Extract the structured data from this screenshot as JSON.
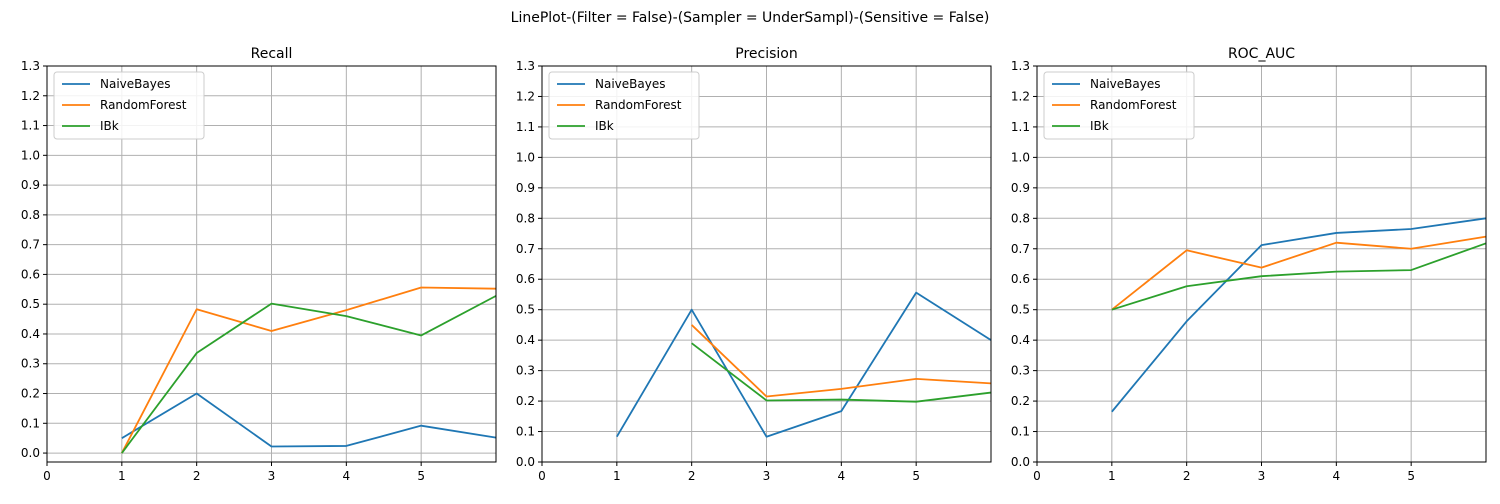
{
  "figure_title": "LinePlot-(Filter = False)-(Sampler = UnderSampl)-(Sensitive = False)",
  "colors": {
    "NaiveBayes": "#1f77b4",
    "RandomForest": "#ff7f0e",
    "IBk": "#2ca02c",
    "grid": "#b0b0b0"
  },
  "chart_data": [
    {
      "type": "line",
      "title": "Recall",
      "xlabel": "",
      "ylabel": "",
      "xlim": [
        0,
        6
      ],
      "ylim": [
        -0.03,
        1.3
      ],
      "xticks": [
        0,
        1,
        2,
        3,
        4,
        5
      ],
      "yticks": [
        0.0,
        0.1,
        0.2,
        0.3,
        0.4,
        0.5,
        0.6,
        0.7,
        0.8,
        0.9,
        1.0,
        1.1,
        1.2,
        1.3
      ],
      "grid": true,
      "legend": "top-left",
      "x": [
        1,
        2,
        3,
        4,
        5,
        6
      ],
      "series": [
        {
          "name": "NaiveBayes",
          "values": [
            0.05,
            0.2,
            0.022,
            0.024,
            0.092,
            0.052
          ]
        },
        {
          "name": "RandomForest",
          "values": [
            0.0,
            0.483,
            0.41,
            0.48,
            0.556,
            0.552
          ]
        },
        {
          "name": "IBk",
          "values": [
            0.0,
            0.336,
            0.502,
            0.46,
            0.395,
            0.528
          ]
        }
      ]
    },
    {
      "type": "line",
      "title": "Precision",
      "xlabel": "",
      "ylabel": "",
      "xlim": [
        0,
        6
      ],
      "ylim": [
        0.0,
        1.3
      ],
      "xticks": [
        0,
        1,
        2,
        3,
        4,
        5
      ],
      "yticks": [
        0.0,
        0.1,
        0.2,
        0.3,
        0.4,
        0.5,
        0.6,
        0.7,
        0.8,
        0.9,
        1.0,
        1.1,
        1.2,
        1.3
      ],
      "grid": true,
      "legend": "top-left",
      "x": [
        1,
        2,
        3,
        4,
        5,
        6
      ],
      "series": [
        {
          "name": "NaiveBayes",
          "values": [
            0.083,
            0.5,
            0.083,
            0.167,
            0.556,
            0.4
          ]
        },
        {
          "name": "RandomForest",
          "values": [
            null,
            0.45,
            0.215,
            0.24,
            0.273,
            0.258
          ]
        },
        {
          "name": "IBk",
          "values": [
            null,
            0.39,
            0.202,
            0.205,
            0.198,
            0.228
          ]
        }
      ]
    },
    {
      "type": "line",
      "title": "ROC_AUC",
      "xlabel": "",
      "ylabel": "",
      "xlim": [
        0,
        6
      ],
      "ylim": [
        0.0,
        1.3
      ],
      "xticks": [
        0,
        1,
        2,
        3,
        4,
        5
      ],
      "yticks": [
        0.0,
        0.1,
        0.2,
        0.3,
        0.4,
        0.5,
        0.6,
        0.7,
        0.8,
        0.9,
        1.0,
        1.1,
        1.2,
        1.3
      ],
      "grid": true,
      "legend": "top-left",
      "x": [
        1,
        2,
        3,
        4,
        5,
        6
      ],
      "series": [
        {
          "name": "NaiveBayes",
          "values": [
            0.165,
            0.462,
            0.712,
            0.752,
            0.765,
            0.8
          ]
        },
        {
          "name": "RandomForest",
          "values": [
            0.5,
            0.695,
            0.638,
            0.72,
            0.7,
            0.74
          ]
        },
        {
          "name": "IBk",
          "values": [
            0.5,
            0.577,
            0.61,
            0.625,
            0.63,
            0.718
          ]
        }
      ]
    }
  ]
}
